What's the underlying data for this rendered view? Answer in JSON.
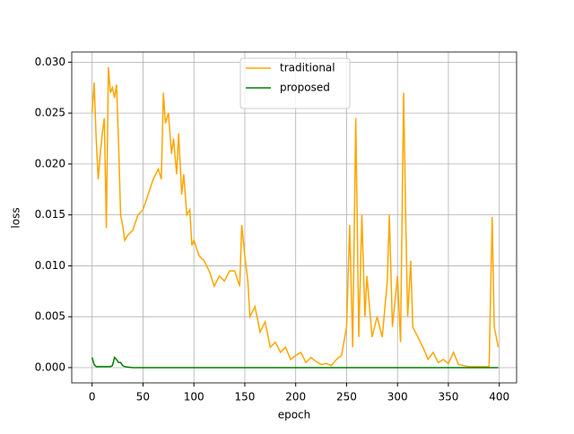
{
  "chart_data": {
    "type": "line",
    "x_label": "epoch",
    "y_label": "loss",
    "x": [
      0,
      2,
      4,
      6,
      8,
      10,
      12,
      14,
      16,
      18,
      20,
      22,
      24,
      26,
      28,
      30,
      32,
      35,
      40,
      45,
      50,
      55,
      60,
      65,
      68,
      70,
      72,
      75,
      78,
      80,
      83,
      85,
      88,
      90,
      93,
      96,
      98,
      100,
      105,
      110,
      115,
      120,
      125,
      130,
      135,
      140,
      145,
      147,
      150,
      153,
      155,
      160,
      165,
      170,
      175,
      180,
      185,
      190,
      195,
      200,
      205,
      210,
      215,
      220,
      225,
      230,
      235,
      240,
      245,
      250,
      253,
      256,
      259,
      262,
      265,
      268,
      270,
      275,
      280,
      285,
      290,
      292,
      295,
      300,
      303,
      306,
      308,
      310,
      313,
      315,
      320,
      325,
      330,
      335,
      340,
      345,
      350,
      355,
      360,
      365,
      370,
      380,
      390,
      393,
      395,
      397,
      399
    ],
    "series": [
      {
        "name": "traditional",
        "color": "orange",
        "values": [
          0.025,
          0.028,
          0.0225,
          0.0185,
          0.021,
          0.023,
          0.0245,
          0.0137,
          0.0295,
          0.027,
          0.0275,
          0.0265,
          0.0278,
          0.022,
          0.015,
          0.014,
          0.0125,
          0.013,
          0.0135,
          0.015,
          0.0155,
          0.017,
          0.0185,
          0.0195,
          0.0185,
          0.027,
          0.024,
          0.025,
          0.021,
          0.0225,
          0.019,
          0.023,
          0.017,
          0.019,
          0.015,
          0.0155,
          0.012,
          0.0125,
          0.011,
          0.0105,
          0.0095,
          0.008,
          0.009,
          0.0085,
          0.0095,
          0.0095,
          0.008,
          0.014,
          0.011,
          0.0085,
          0.005,
          0.006,
          0.0035,
          0.0045,
          0.002,
          0.0025,
          0.0015,
          0.002,
          0.0008,
          0.0012,
          0.0015,
          0.0005,
          0.001,
          0.0006,
          0.0003,
          0.0004,
          0.0002,
          0.0008,
          0.0012,
          0.004,
          0.014,
          0.002,
          0.0245,
          0.003,
          0.015,
          0.005,
          0.009,
          0.003,
          0.005,
          0.003,
          0.0085,
          0.015,
          0.004,
          0.009,
          0.0025,
          0.027,
          0.015,
          0.005,
          0.0105,
          0.004,
          0.003,
          0.002,
          0.0008,
          0.0015,
          0.0005,
          0.0008,
          0.0004,
          0.0015,
          0.0003,
          0.0002,
          0.0001,
          0.0001,
          0.0001,
          0.0148,
          0.004,
          0.003,
          0.002
        ]
      },
      {
        "name": "proposed",
        "color": "green",
        "values": [
          0.001,
          0.0003,
          0.0001,
          0.0001,
          0.0001,
          0.0001,
          0.0001,
          0.0001,
          0.0001,
          0.0001,
          0.0002,
          0.001,
          0.0008,
          0.0005,
          0.0005,
          0.0002,
          0.0001,
          5e-05,
          0,
          0,
          0,
          0,
          0,
          0,
          0,
          0,
          0,
          0,
          0,
          0,
          0,
          0,
          0,
          0,
          0,
          0,
          0,
          0,
          0,
          0,
          0,
          0,
          0,
          0,
          0,
          0,
          0,
          0,
          0,
          0,
          0,
          0,
          0,
          0,
          0,
          0,
          0,
          0,
          0,
          0,
          0,
          0,
          0,
          0,
          0,
          0,
          0,
          0,
          0,
          0,
          0,
          0,
          0,
          0,
          0,
          0,
          0,
          0,
          0,
          0,
          0,
          0,
          0,
          0,
          0,
          0,
          0,
          0,
          0,
          0,
          0,
          0,
          0,
          0,
          0,
          0,
          0,
          0,
          0,
          0,
          0,
          0,
          0,
          0,
          0,
          0,
          0
        ]
      }
    ],
    "xlim": [
      -20,
      417
    ],
    "ylim": [
      -0.0015,
      0.031
    ],
    "xticks": [
      0,
      50,
      100,
      150,
      200,
      250,
      300,
      350,
      400
    ],
    "yticks": [
      {
        "value": 0,
        "label": "0.000"
      },
      {
        "value": 0.005,
        "label": "0.005"
      },
      {
        "value": 0.01,
        "label": "0.010"
      },
      {
        "value": 0.015,
        "label": "0.015"
      },
      {
        "value": 0.02,
        "label": "0.020"
      },
      {
        "value": 0.025,
        "label": "0.025"
      },
      {
        "value": 0.03,
        "label": "0.030"
      }
    ],
    "grid": true,
    "legend": "upper center"
  }
}
